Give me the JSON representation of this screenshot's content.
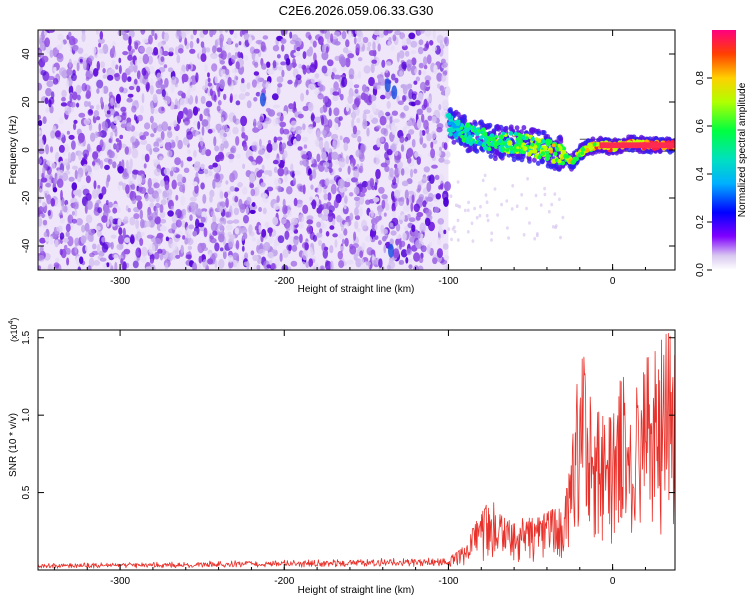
{
  "title": "C2E6.2026.059.06.33.G30",
  "colors": {
    "snr_line": "#e8312a",
    "spectro_low": "#e0d0f4",
    "spectro_mid": "#8a3ae0",
    "spectro_high": "#5a00d8"
  },
  "chart_data": [
    {
      "id": "spectrogram",
      "type": "heatmap",
      "xlabel": "Height of straight line (km)",
      "ylabel": "Frequency (Hz)",
      "xlim": [
        -350,
        38
      ],
      "ylim": [
        -50,
        50
      ],
      "xticks": [
        -300,
        -200,
        -100,
        0
      ],
      "yticks": [
        -40,
        -20,
        0,
        20,
        40
      ],
      "noise_region_x": [
        -350,
        -100
      ],
      "signal_track": {
        "x": [
          -100,
          -90,
          -80,
          -70,
          -60,
          -50,
          -40,
          -30,
          -25,
          -20,
          -15,
          -10,
          -5,
          0,
          5,
          10,
          20,
          30,
          38
        ],
        "y": [
          11,
          7,
          5,
          3,
          3,
          2,
          0,
          -2,
          -5,
          -1,
          1,
          2,
          2,
          1,
          2,
          3,
          2,
          2,
          2
        ]
      },
      "colorbar": {
        "label": "Normalized spectral amplitude",
        "range": [
          0,
          1
        ],
        "ticks": [
          0.0,
          0.2,
          0.4,
          0.6,
          0.8
        ]
      }
    },
    {
      "id": "snr",
      "type": "line",
      "xlabel": "Height of straight line (km)",
      "ylabel": "SNR (10 * v/v)",
      "y_multiplier": "(x10",
      "y_multiplier_exp": "4",
      "xlim": [
        -350,
        38
      ],
      "ylim": [
        0,
        15500
      ],
      "xticks": [
        -300,
        -200,
        -100,
        0
      ],
      "yticks": [
        5000,
        10000,
        15000
      ],
      "ytick_labels": [
        "0.5",
        "1.0",
        "1.5"
      ],
      "envelope": {
        "x": [
          -350,
          -200,
          -100,
          -90,
          -80,
          -75,
          -70,
          -60,
          -50,
          -40,
          -30,
          -25,
          -22,
          -20,
          -18,
          -15,
          -10,
          -5,
          0,
          5,
          10,
          12,
          15,
          20,
          25,
          30,
          38
        ],
        "y": [
          300,
          500,
          700,
          1500,
          3500,
          4500,
          3500,
          3000,
          3200,
          3400,
          4300,
          6500,
          12000,
          9500,
          13500,
          11000,
          10000,
          9000,
          9000,
          11500,
          11000,
          6000,
          11500,
          12500,
          13500,
          14000,
          14300
        ]
      }
    }
  ]
}
